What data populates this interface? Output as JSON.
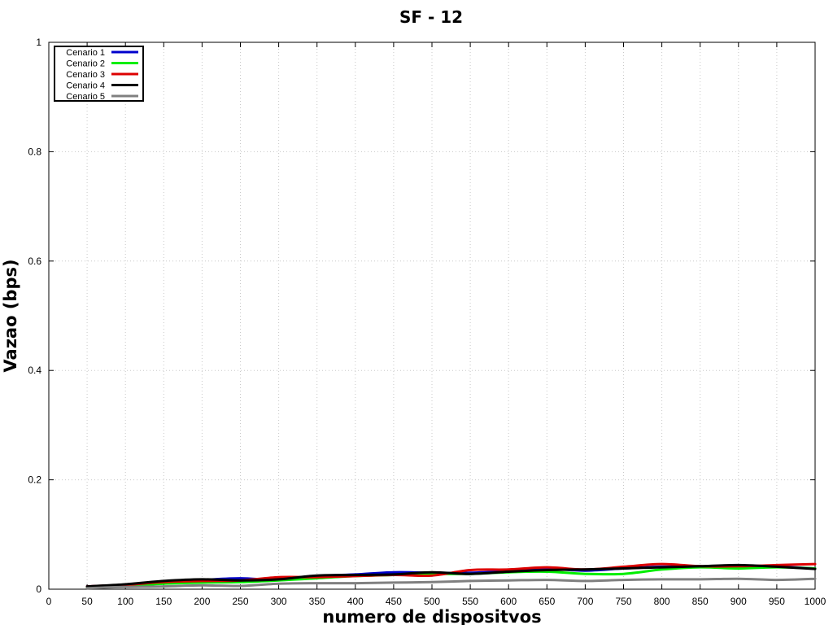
{
  "chart_data": {
    "type": "line",
    "title": "SF - 12",
    "xlabel": "numero de dispositvos",
    "ylabel": "Vazao (bps)",
    "xlim": [
      0,
      1000
    ],
    "ylim": [
      0,
      1
    ],
    "x_ticks": [
      "0",
      "50",
      "100",
      "150",
      "200",
      "250",
      "300",
      "350",
      "400",
      "450",
      "500",
      "550",
      "600",
      "650",
      "700",
      "750",
      "800",
      "850",
      "900",
      "950",
      "1000"
    ],
    "y_ticks": [
      "0",
      "0.2",
      "0.4",
      "0.6",
      "0.8",
      "1"
    ],
    "grid": true,
    "legend_position": "top-left",
    "x": [
      50,
      100,
      150,
      200,
      250,
      300,
      350,
      400,
      450,
      500,
      550,
      600,
      650,
      700,
      750,
      800,
      850,
      900,
      950,
      1000
    ],
    "series": [
      {
        "name": "Cenario 1",
        "color": "#0000cc",
        "values": [
          0.005,
          0.008,
          0.014,
          0.017,
          0.02,
          0.017,
          0.024,
          0.027,
          0.031,
          0.03,
          0.03,
          0.033,
          0.037,
          0.034,
          0.038,
          0.041,
          0.041,
          0.042,
          0.041,
          0.038
        ]
      },
      {
        "name": "Cenario 2",
        "color": "#00ee00",
        "values": [
          0.004,
          0.006,
          0.01,
          0.012,
          0.013,
          0.016,
          0.02,
          0.024,
          0.026,
          0.028,
          0.028,
          0.031,
          0.032,
          0.028,
          0.028,
          0.036,
          0.04,
          0.038,
          0.04,
          0.038
        ]
      },
      {
        "name": "Cenario 3",
        "color": "#dd0000",
        "values": [
          0.005,
          0.008,
          0.013,
          0.015,
          0.016,
          0.022,
          0.022,
          0.024,
          0.026,
          0.025,
          0.035,
          0.036,
          0.04,
          0.036,
          0.041,
          0.046,
          0.042,
          0.042,
          0.044,
          0.046
        ]
      },
      {
        "name": "Cenario 4",
        "color": "#000000",
        "values": [
          0.005,
          0.009,
          0.015,
          0.018,
          0.016,
          0.018,
          0.025,
          0.026,
          0.027,
          0.031,
          0.028,
          0.032,
          0.035,
          0.036,
          0.038,
          0.04,
          0.042,
          0.044,
          0.041,
          0.037
        ]
      },
      {
        "name": "Cenario 5",
        "color": "#808080",
        "values": [
          0.002,
          0.004,
          0.005,
          0.007,
          0.006,
          0.01,
          0.011,
          0.011,
          0.012,
          0.013,
          0.015,
          0.016,
          0.017,
          0.015,
          0.017,
          0.018,
          0.018,
          0.019,
          0.017,
          0.019
        ]
      }
    ]
  }
}
